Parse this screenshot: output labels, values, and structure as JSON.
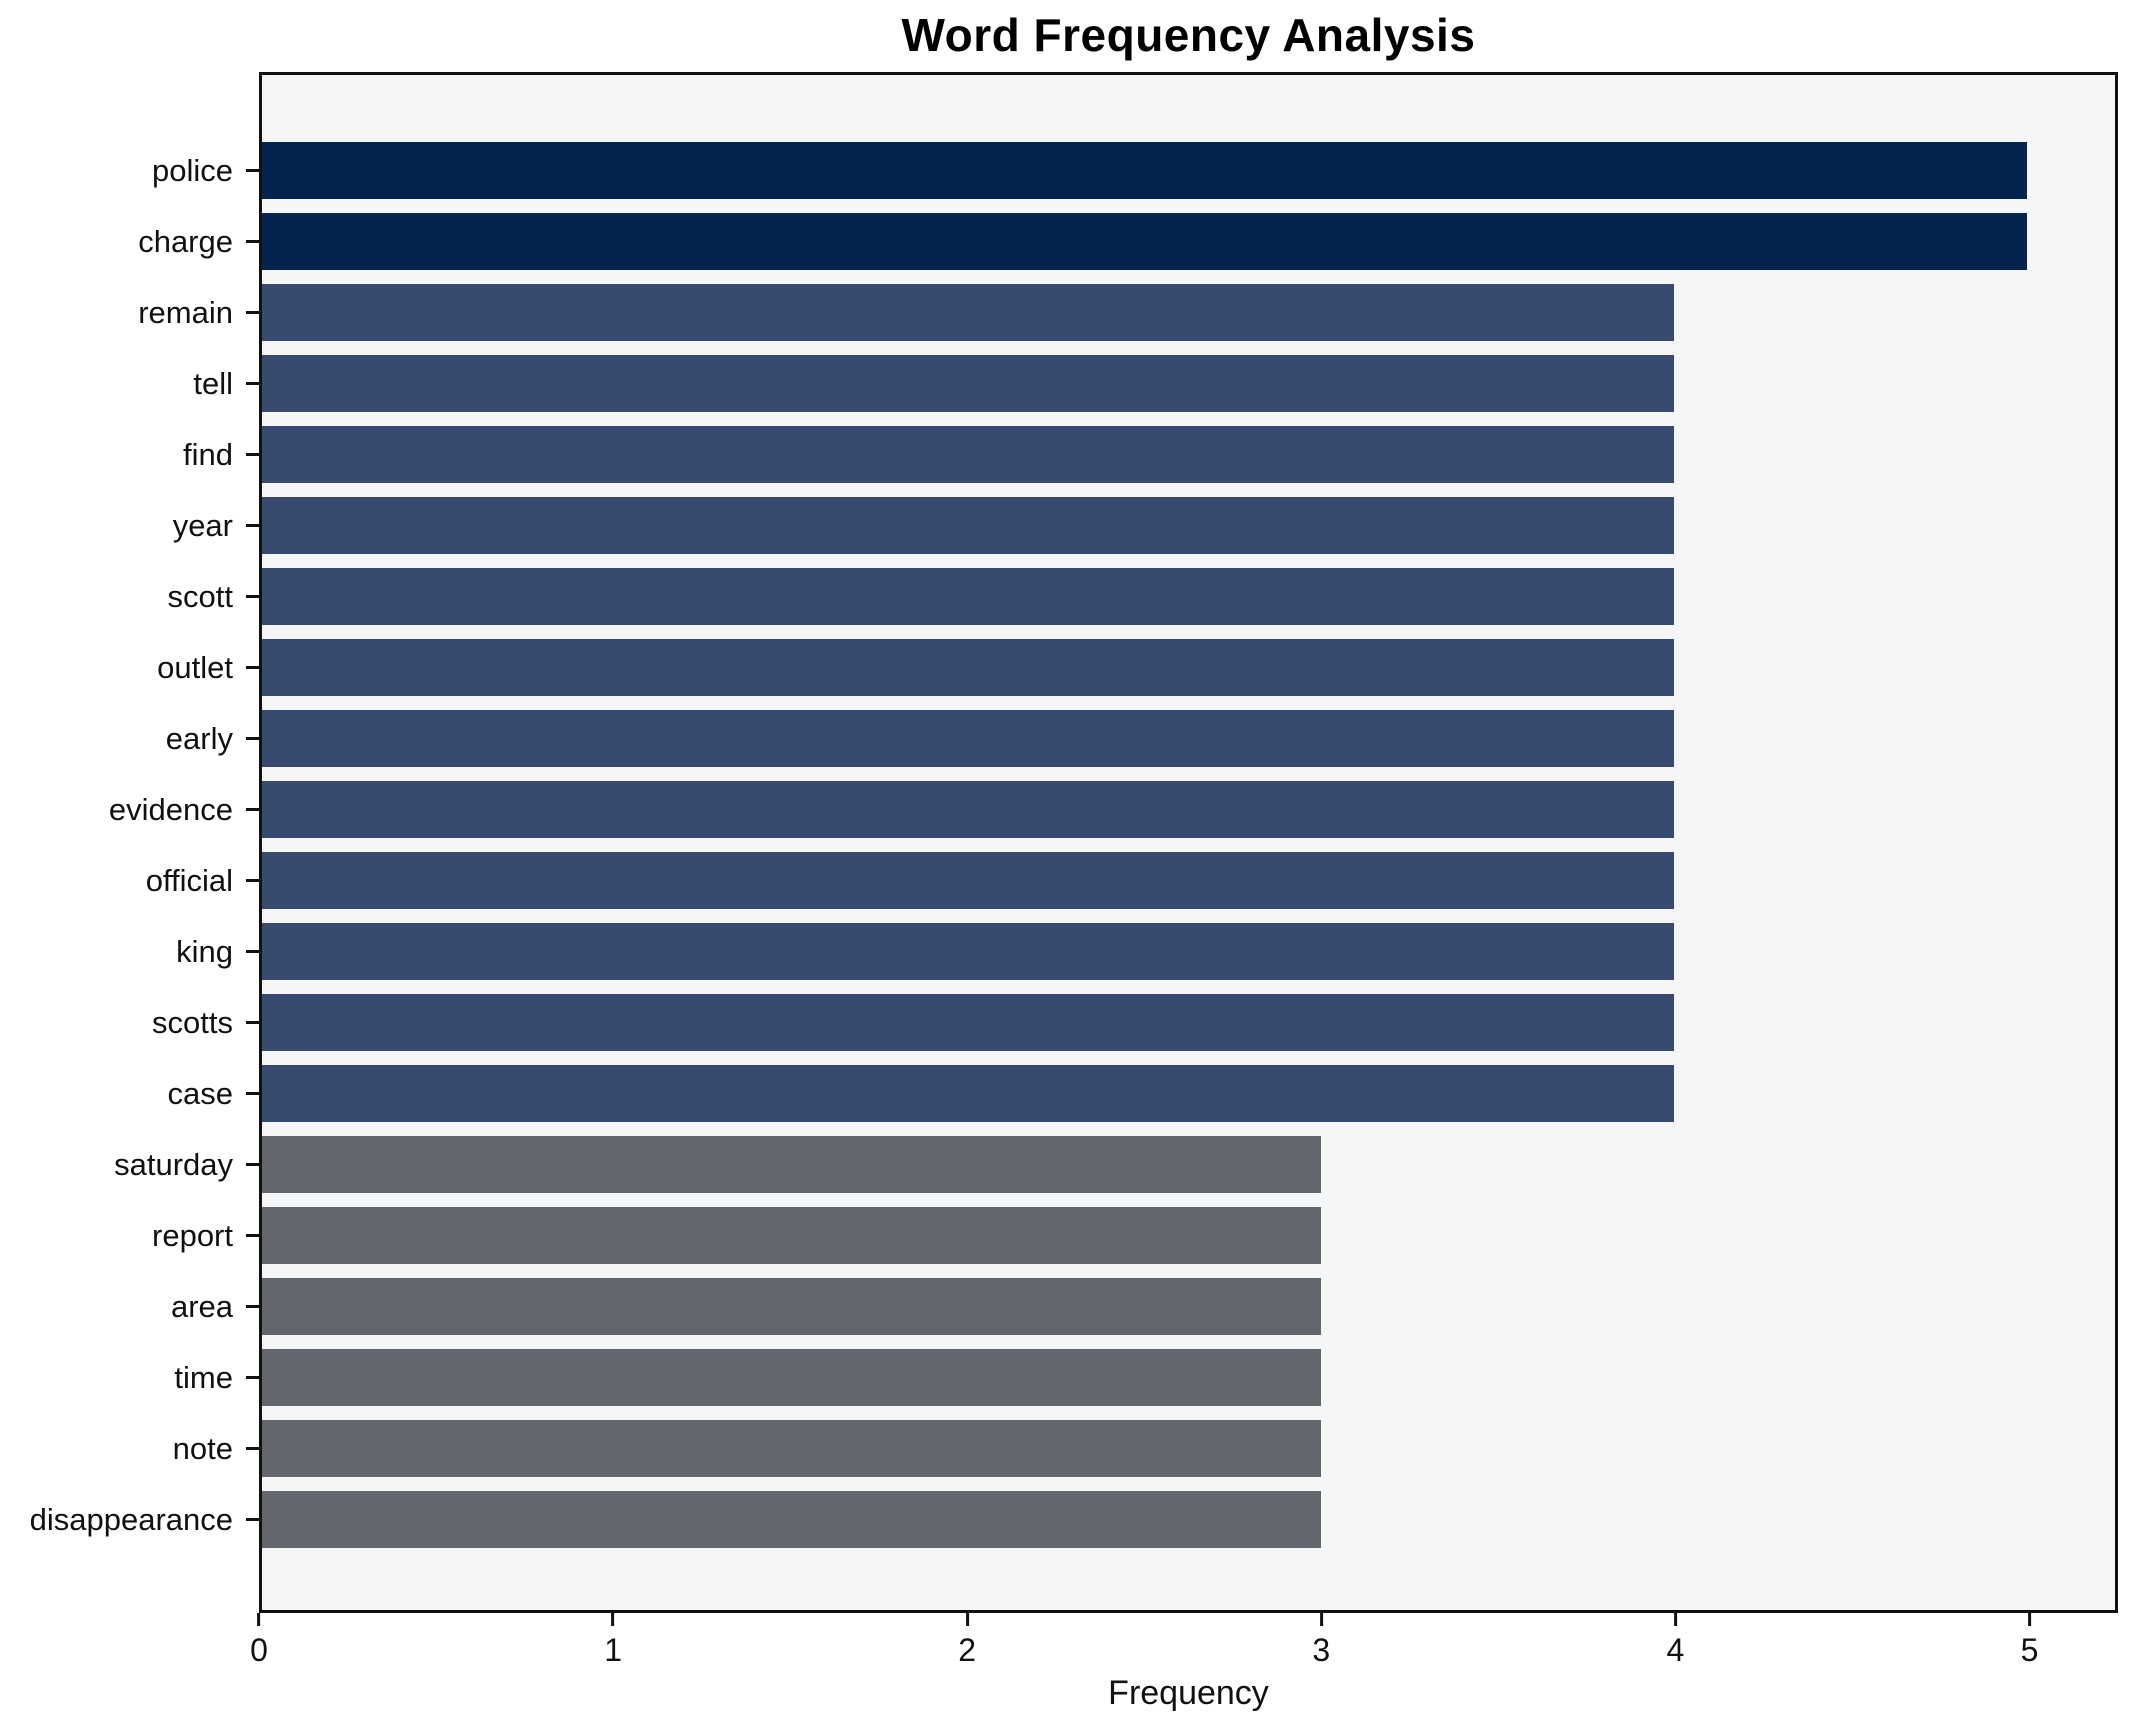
{
  "chart_data": {
    "type": "bar",
    "orientation": "horizontal",
    "title": "Word Frequency Analysis",
    "xlabel": "Frequency",
    "ylabel": "",
    "categories": [
      "police",
      "charge",
      "remain",
      "tell",
      "find",
      "year",
      "scott",
      "outlet",
      "early",
      "evidence",
      "official",
      "king",
      "scotts",
      "case",
      "saturday",
      "report",
      "area",
      "time",
      "note",
      "disappearance"
    ],
    "values": [
      5,
      5,
      4,
      4,
      4,
      4,
      4,
      4,
      4,
      4,
      4,
      4,
      4,
      4,
      3,
      3,
      3,
      3,
      3,
      3
    ],
    "x_ticks": [
      "0",
      "1",
      "2",
      "3",
      "4",
      "5"
    ],
    "xlim": [
      0,
      5.25
    ],
    "grid": false,
    "legend": false,
    "colors": {
      "value_5": "#04234d",
      "value_4": "#394a71",
      "value_3": "#64666e",
      "plot_background": "#f5f6f7",
      "spine": "#111111",
      "text": "#111111"
    }
  }
}
